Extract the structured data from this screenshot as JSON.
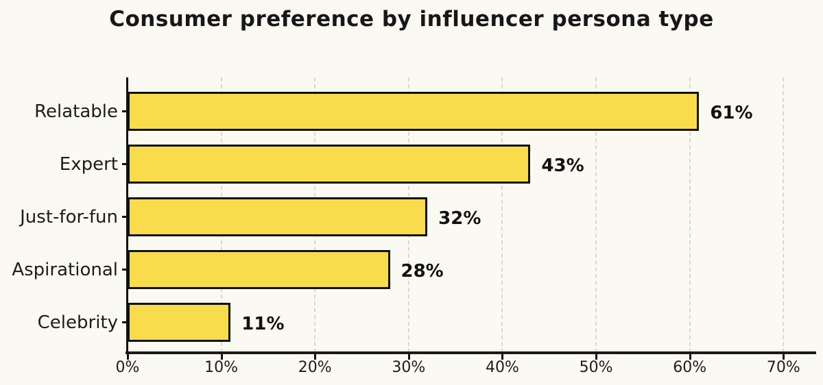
{
  "title": "Consumer preference by influencer persona type",
  "chart_data": {
    "type": "bar",
    "orientation": "horizontal",
    "title": "Consumer preference by influencer persona type",
    "categories": [
      "Relatable",
      "Expert",
      "Just-for-fun",
      "Aspirational",
      "Celebrity"
    ],
    "values": [
      61,
      43,
      32,
      28,
      11
    ],
    "value_labels": [
      "61%",
      "43%",
      "32%",
      "28%",
      "11%"
    ],
    "xlabel": "",
    "ylabel": "",
    "xlim": [
      0,
      73.2
    ],
    "x_tick_values": [
      0,
      10,
      20,
      30,
      40,
      50,
      60,
      70
    ],
    "x_tick_labels": [
      "0%",
      "10%",
      "20%",
      "30%",
      "40%",
      "50%",
      "60%",
      "70%"
    ],
    "grid": "vertical-dashed",
    "legend": "none",
    "bar_color": "#F9DC4B",
    "bar_border_color": "#111111",
    "background_color": "#FAFAF2",
    "gridline_color": "#D9D9D3"
  }
}
